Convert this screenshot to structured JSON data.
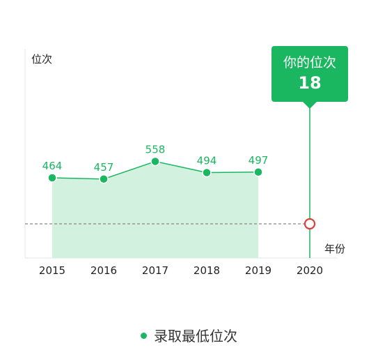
{
  "chart_data": {
    "type": "area",
    "categories": [
      "2015",
      "2016",
      "2017",
      "2018",
      "2019",
      "2020"
    ],
    "series": [
      {
        "name": "录取最低位次",
        "values": [
          464,
          457,
          558,
          494,
          497,
          null
        ]
      }
    ],
    "ylabel": "位次",
    "xlabel": "年份",
    "highlight": {
      "category": "2020",
      "label": "你的位次",
      "value": "18"
    },
    "grid": false,
    "legend": "bottom"
  },
  "colors": {
    "line": "#1ab760",
    "area": "#d2f1df",
    "tooltip": "#1ab760",
    "marker": "#d9413d",
    "dash": "#888888",
    "text": "#222222"
  }
}
